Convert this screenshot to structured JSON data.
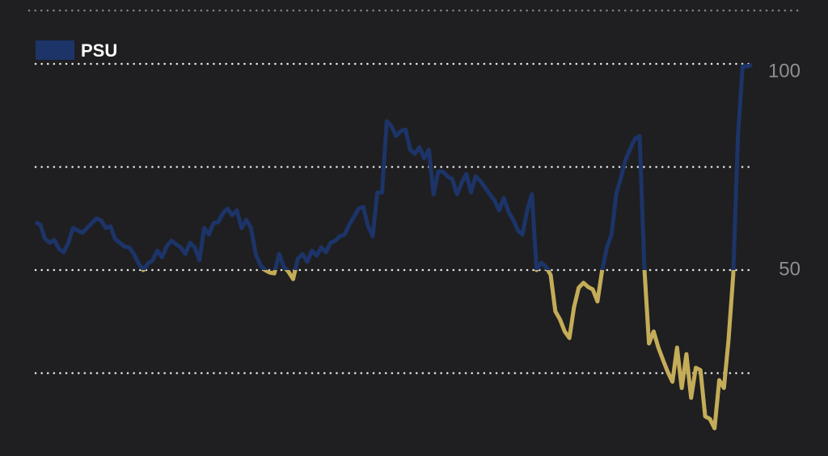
{
  "chart_data": {
    "type": "line",
    "series": [
      {
        "name": "PSU",
        "color": "#1c3468",
        "below_color": "#c4ac58",
        "values": [
          61.6,
          61.0,
          57.6,
          56.6,
          57.3,
          55.1,
          54.3,
          56.6,
          60.2,
          59.6,
          59.0,
          60.2,
          61.4,
          62.5,
          62.0,
          60.2,
          60.6,
          57.5,
          56.6,
          55.7,
          55.5,
          53.9,
          51.6,
          50.0,
          51.6,
          52.4,
          54.7,
          53.1,
          55.7,
          57.1,
          56.3,
          55.5,
          53.9,
          56.6,
          55.5,
          52.4,
          60.2,
          58.6,
          61.4,
          61.6,
          63.7,
          64.9,
          63.3,
          64.5,
          60.2,
          62.2,
          60.2,
          53.9,
          51.2,
          50.0,
          49.4,
          49.2,
          53.9,
          50.8,
          49.6,
          47.8,
          52.7,
          53.9,
          52.0,
          54.7,
          53.5,
          55.5,
          54.3,
          56.6,
          57.1,
          58.2,
          58.6,
          61.0,
          62.9,
          64.9,
          65.3,
          60.6,
          58.2,
          68.8,
          68.8,
          86.1,
          84.9,
          82.5,
          83.7,
          84.1,
          79.2,
          78.2,
          79.8,
          77.1,
          79.2,
          68.4,
          73.9,
          73.9,
          72.7,
          72.0,
          68.4,
          71.2,
          73.3,
          68.8,
          72.7,
          71.6,
          70.0,
          68.4,
          66.9,
          64.5,
          67.5,
          64.1,
          62.2,
          59.6,
          58.6,
          64.5,
          68.4,
          50.0,
          51.8,
          50.8,
          48.8,
          40.0,
          38.0,
          35.1,
          33.5,
          41.0,
          45.7,
          46.9,
          45.9,
          45.3,
          42.4,
          50.0,
          55.5,
          58.6,
          68.4,
          72.4,
          76.7,
          79.4,
          81.8,
          82.5,
          50.8,
          32.2,
          35.1,
          31.2,
          28.2,
          25.3,
          22.9,
          31.2,
          21.4,
          29.6,
          19.0,
          26.3,
          25.7,
          14.5,
          13.9,
          11.6,
          23.3,
          21.4,
          33.1,
          48.8,
          82.2,
          99.4,
          99.4,
          99.8
        ]
      }
    ],
    "threshold": 50,
    "ylim": [
      10,
      100
    ],
    "yticks": [
      {
        "value": 25,
        "label": null
      },
      50,
      {
        "value": 75,
        "label": null
      },
      100
    ],
    "grid": true
  }
}
